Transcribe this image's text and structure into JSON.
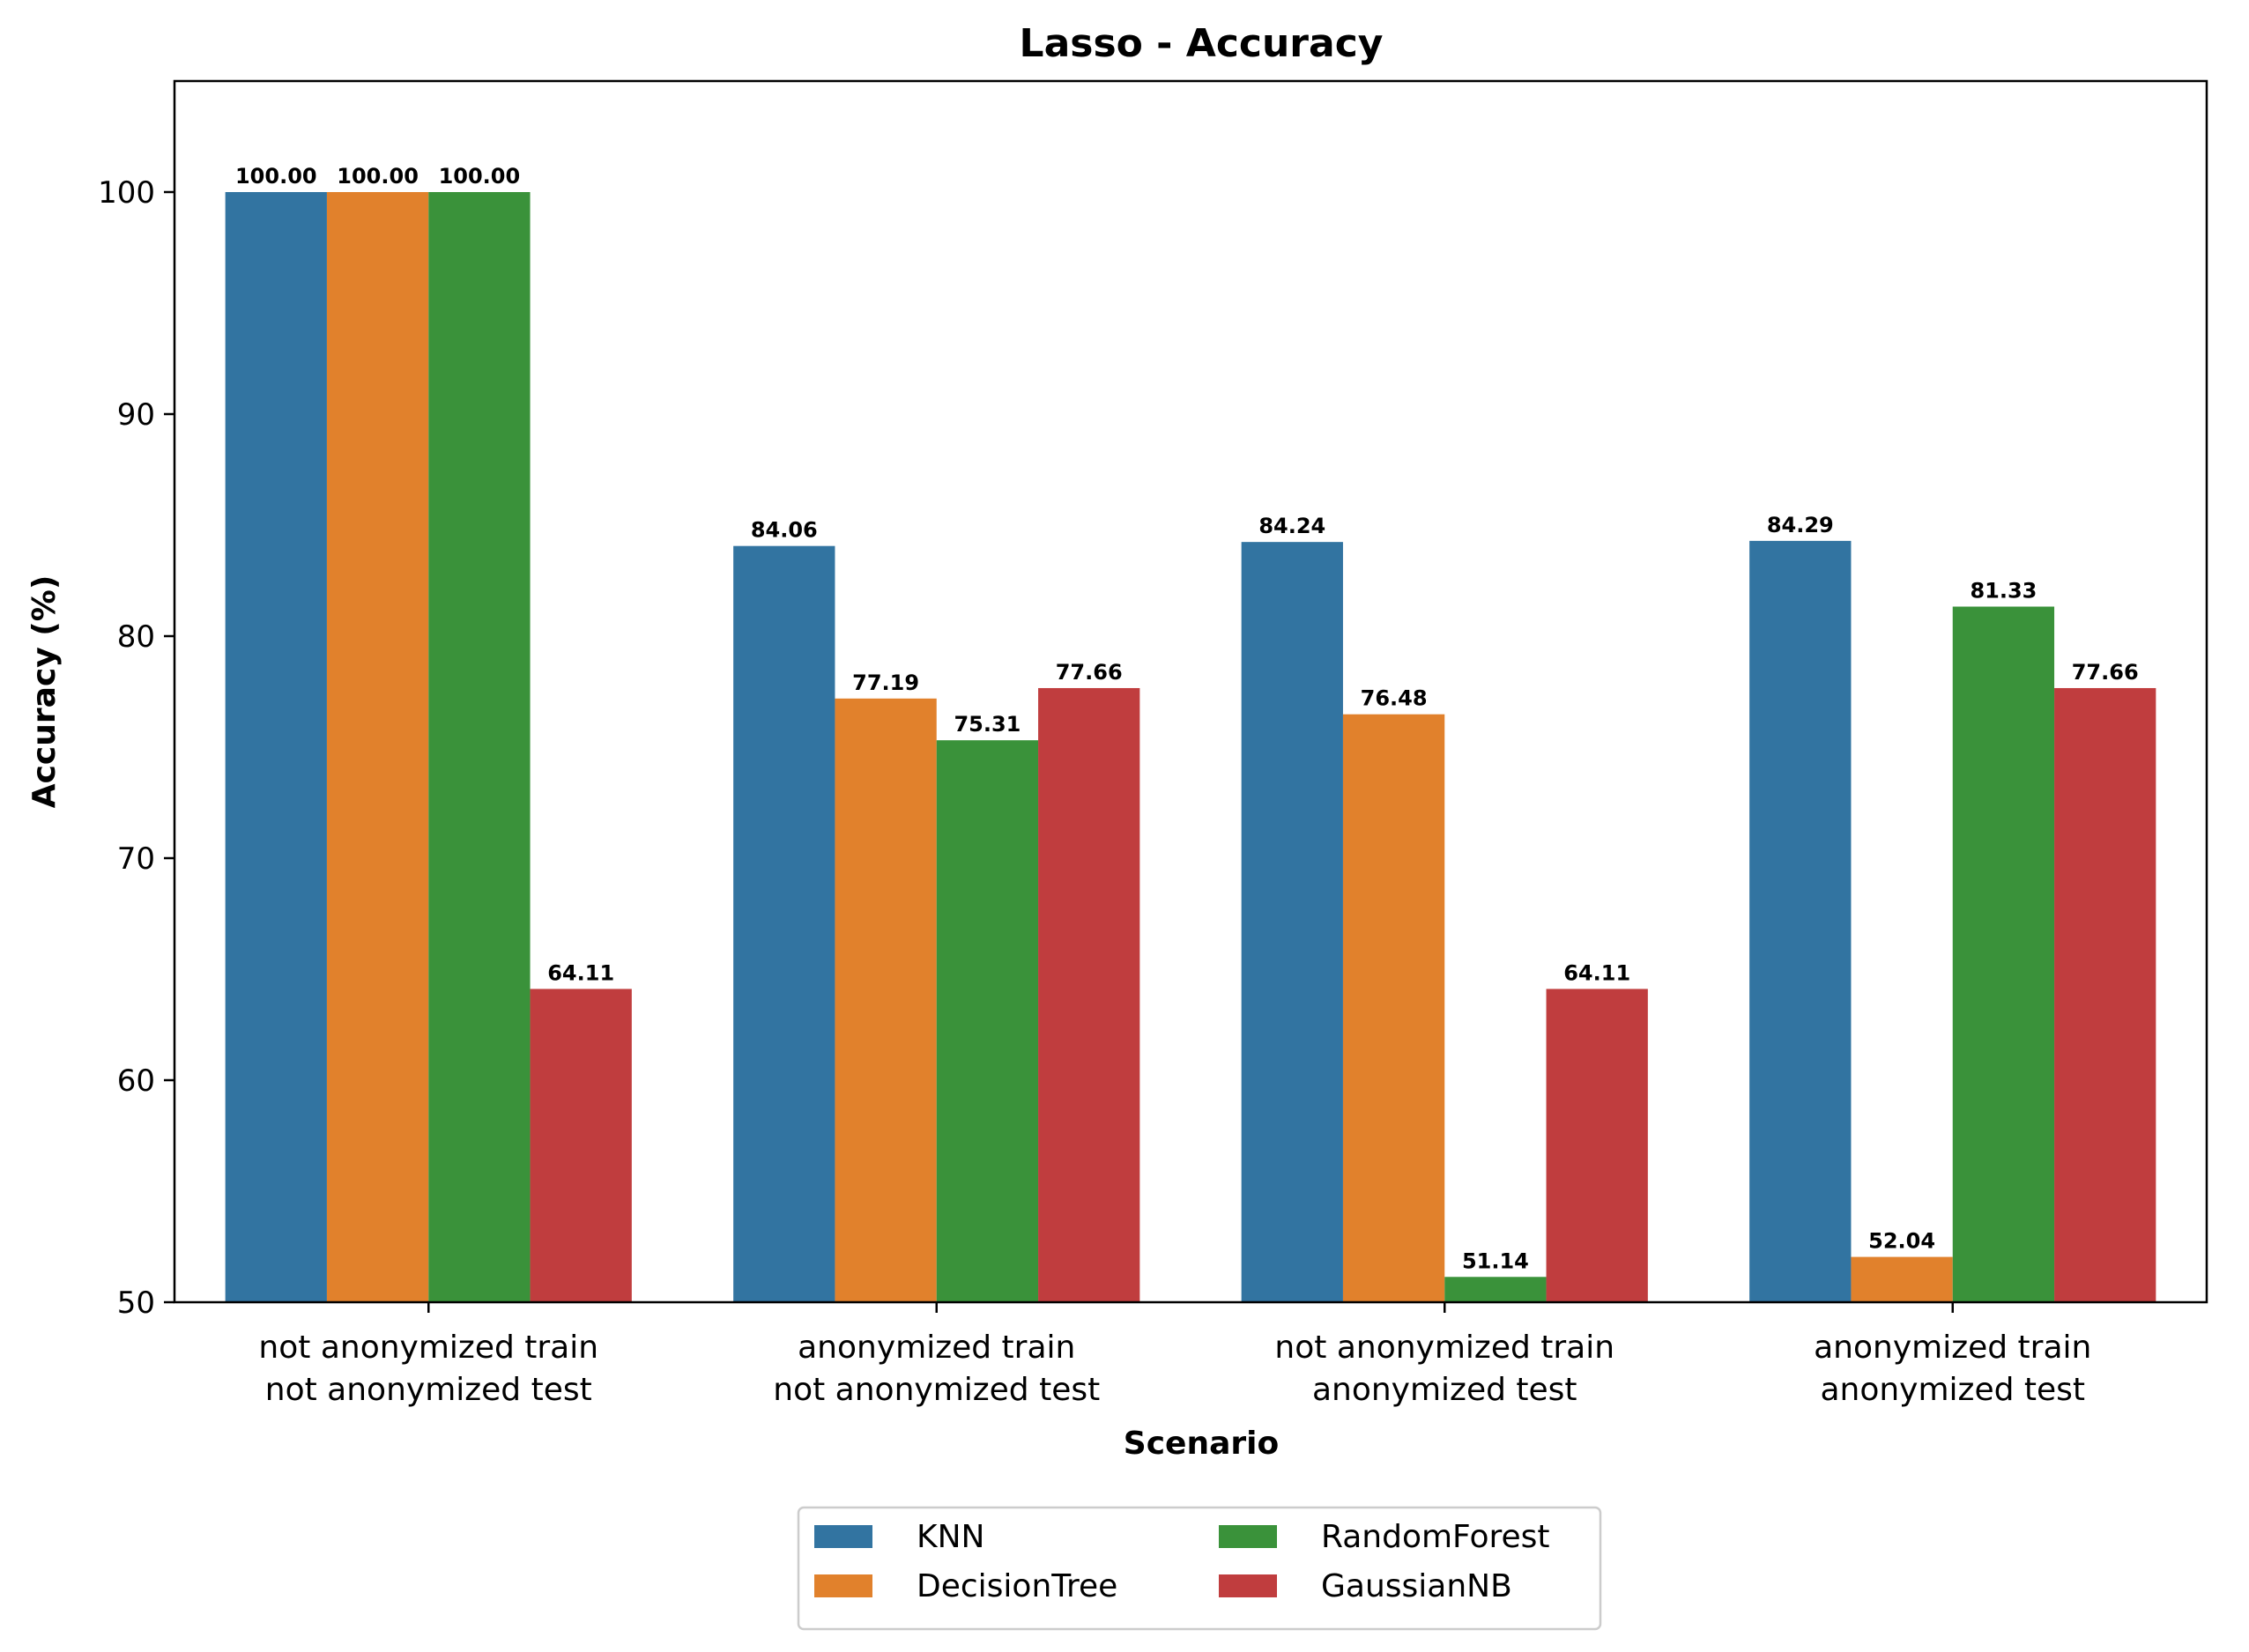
{
  "chart_data": {
    "type": "bar",
    "title": "Lasso - Accuracy",
    "xlabel": "Scenario",
    "ylabel": "Accuracy (%)",
    "ylim": [
      50,
      105
    ],
    "yticks": [
      50,
      60,
      70,
      80,
      90,
      100
    ],
    "categories": [
      [
        "not anonymized train",
        "not anonymized test"
      ],
      [
        "anonymized train",
        "not anonymized test"
      ],
      [
        "not anonymized train",
        "anonymized test"
      ],
      [
        "anonymized train",
        "anonymized test"
      ]
    ],
    "series": [
      {
        "name": "KNN",
        "color": "#3274a1",
        "values": [
          100.0,
          84.06,
          84.24,
          84.29
        ],
        "labels": [
          "100.00",
          "84.06",
          "84.24",
          "84.29"
        ]
      },
      {
        "name": "DecisionTree",
        "color": "#e1812c",
        "values": [
          100.0,
          77.19,
          76.48,
          52.04
        ],
        "labels": [
          "100.00",
          "77.19",
          "76.48",
          "52.04"
        ]
      },
      {
        "name": "RandomForest",
        "color": "#3a923a",
        "values": [
          100.0,
          75.31,
          51.14,
          81.33
        ],
        "labels": [
          "100.00",
          "75.31",
          "51.14",
          "81.33"
        ]
      },
      {
        "name": "GaussianNB",
        "color": "#c03d3e",
        "values": [
          64.11,
          77.66,
          64.11,
          77.66
        ],
        "labels": [
          "64.11",
          "77.66",
          "64.11",
          "77.66"
        ]
      }
    ],
    "grid": false,
    "legend": "bottom-center"
  }
}
